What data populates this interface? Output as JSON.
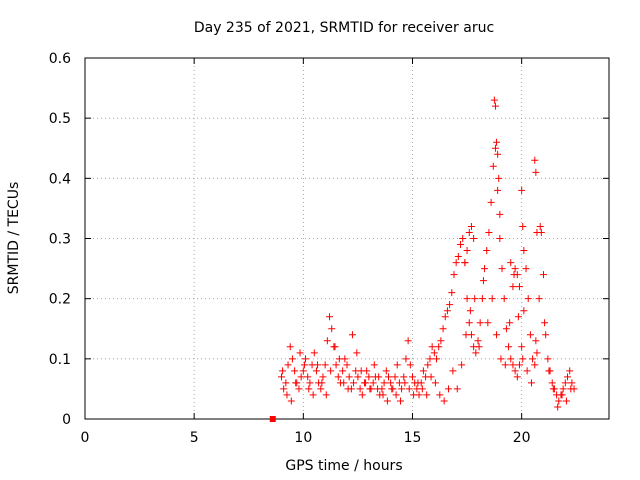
{
  "chart_data": {
    "type": "scatter",
    "title": "Day 235 of 2021, SRMTID for receiver aruc",
    "xlabel": "GPS time / hours",
    "ylabel": "SRMTID / TECUs",
    "xlim": [
      0,
      24
    ],
    "ylim": [
      0,
      0.6
    ],
    "x_ticks": [
      "0",
      "5",
      "10",
      "15",
      "20"
    ],
    "y_ticks": [
      "0",
      "0.1",
      "0.2",
      "0.3",
      "0.4",
      "0.5",
      "0.6"
    ],
    "grid": true,
    "marker": "+",
    "color": "#ff0000",
    "start_marker": {
      "x": 8.6,
      "y": 0.0
    },
    "series": [
      {
        "name": "SRMTID",
        "x": [
          9.0,
          9.1,
          9.2,
          9.3,
          9.4,
          9.5,
          9.6,
          9.7,
          9.8,
          9.9,
          10.0,
          10.1,
          10.2,
          10.3,
          10.4,
          10.5,
          10.6,
          10.7,
          10.8,
          10.9,
          11.0,
          11.1,
          11.2,
          11.3,
          11.4,
          11.5,
          11.6,
          11.7,
          11.8,
          11.9,
          12.0,
          12.1,
          12.2,
          12.3,
          12.4,
          12.5,
          12.6,
          12.7,
          12.8,
          12.9,
          13.0,
          13.1,
          13.2,
          13.3,
          13.4,
          13.5,
          13.6,
          13.7,
          13.8,
          13.9,
          14.0,
          14.1,
          14.2,
          14.3,
          14.4,
          14.5,
          14.6,
          14.7,
          14.8,
          14.9,
          15.0,
          15.1,
          15.2,
          15.3,
          15.4,
          15.5,
          15.6,
          15.7,
          15.8,
          15.9,
          16.0,
          16.1,
          16.2,
          16.3,
          16.4,
          16.5,
          16.6,
          16.7,
          16.8,
          16.9,
          17.0,
          17.1,
          17.2,
          17.3,
          17.4,
          17.5,
          17.6,
          17.7,
          17.8,
          17.9,
          18.0,
          18.1,
          18.2,
          18.3,
          18.4,
          18.5,
          18.6,
          18.7,
          18.8,
          18.9,
          19.0,
          19.1,
          19.2,
          19.3,
          19.4,
          19.5,
          19.6,
          19.7,
          19.8,
          19.9,
          20.0,
          20.1,
          20.2,
          20.3,
          20.4,
          20.5,
          20.6,
          20.7,
          20.8,
          20.9,
          21.0,
          21.1,
          21.2,
          21.3,
          21.4,
          21.5,
          21.6,
          21.7,
          21.8,
          21.9,
          22.0,
          22.1,
          22.2,
          22.3,
          22.4,
          9.05,
          9.25,
          9.45,
          9.65,
          9.85,
          10.05,
          10.25,
          10.45,
          10.65,
          10.85,
          11.05,
          11.25,
          11.45,
          11.65,
          11.85,
          12.05,
          12.25,
          12.45,
          12.65,
          12.85,
          13.05,
          13.25,
          13.45,
          13.65,
          13.85,
          14.05,
          14.25,
          14.45,
          14.65,
          14.85,
          15.05,
          15.25,
          15.45,
          15.65,
          15.85,
          16.05,
          16.25,
          16.45,
          16.65,
          16.85,
          17.05,
          17.25,
          17.45,
          17.65,
          17.85,
          18.05,
          18.25,
          18.45,
          18.65,
          18.85,
          19.05,
          19.25,
          19.45,
          19.65,
          19.85,
          20.05,
          20.25,
          20.45,
          20.65,
          20.85,
          21.05,
          21.25,
          21.45,
          21.65,
          21.85,
          22.05,
          22.25,
          18.75,
          18.8,
          18.85,
          18.9,
          18.95,
          19.0,
          20.0,
          20.05,
          20.1,
          20.6,
          20.65,
          20.7,
          17.6,
          17.7,
          17.8,
          17.5,
          17.4,
          19.5,
          19.6,
          19.7,
          19.8,
          19.9
        ],
        "y": [
          0.07,
          0.05,
          0.06,
          0.09,
          0.12,
          0.1,
          0.08,
          0.06,
          0.05,
          0.07,
          0.08,
          0.1,
          0.07,
          0.06,
          0.09,
          0.11,
          0.08,
          0.06,
          0.05,
          0.07,
          0.09,
          0.13,
          0.17,
          0.15,
          0.12,
          0.09,
          0.07,
          0.06,
          0.08,
          0.1,
          0.09,
          0.07,
          0.05,
          0.06,
          0.08,
          0.07,
          0.05,
          0.04,
          0.06,
          0.08,
          0.07,
          0.05,
          0.06,
          0.07,
          0.05,
          0.04,
          0.05,
          0.06,
          0.08,
          0.07,
          0.06,
          0.05,
          0.07,
          0.09,
          0.06,
          0.05,
          0.07,
          0.1,
          0.13,
          0.09,
          0.07,
          0.06,
          0.05,
          0.04,
          0.06,
          0.08,
          0.07,
          0.09,
          0.1,
          0.12,
          0.11,
          0.1,
          0.12,
          0.13,
          0.15,
          0.17,
          0.18,
          0.19,
          0.21,
          0.24,
          0.26,
          0.27,
          0.29,
          0.3,
          0.26,
          0.2,
          0.16,
          0.14,
          0.12,
          0.11,
          0.13,
          0.16,
          0.2,
          0.25,
          0.28,
          0.31,
          0.36,
          0.42,
          0.45,
          0.38,
          0.3,
          0.25,
          0.2,
          0.15,
          0.12,
          0.1,
          0.09,
          0.08,
          0.07,
          0.09,
          0.12,
          0.18,
          0.25,
          0.2,
          0.14,
          0.1,
          0.09,
          0.11,
          0.2,
          0.31,
          0.24,
          0.14,
          0.1,
          0.08,
          0.06,
          0.05,
          0.04,
          0.03,
          0.04,
          0.05,
          0.06,
          0.07,
          0.08,
          0.06,
          0.05,
          0.08,
          0.04,
          0.03,
          0.06,
          0.11,
          0.09,
          0.05,
          0.04,
          0.09,
          0.06,
          0.04,
          0.08,
          0.12,
          0.1,
          0.06,
          0.05,
          0.14,
          0.11,
          0.08,
          0.06,
          0.05,
          0.09,
          0.07,
          0.04,
          0.03,
          0.05,
          0.04,
          0.03,
          0.06,
          0.05,
          0.04,
          0.06,
          0.05,
          0.04,
          0.07,
          0.06,
          0.04,
          0.03,
          0.05,
          0.08,
          0.05,
          0.09,
          0.14,
          0.18,
          0.2,
          0.12,
          0.23,
          0.16,
          0.2,
          0.14,
          0.1,
          0.09,
          0.16,
          0.24,
          0.17,
          0.1,
          0.08,
          0.06,
          0.13,
          0.32,
          0.16,
          0.08,
          0.05,
          0.02,
          0.04,
          0.03,
          0.05,
          0.53,
          0.52,
          0.46,
          0.44,
          0.4,
          0.34,
          0.38,
          0.32,
          0.28,
          0.43,
          0.41,
          0.31,
          0.31,
          0.32,
          0.3,
          0.28,
          0.26,
          0.26,
          0.22,
          0.25,
          0.24,
          0.22
        ]
      }
    ]
  }
}
